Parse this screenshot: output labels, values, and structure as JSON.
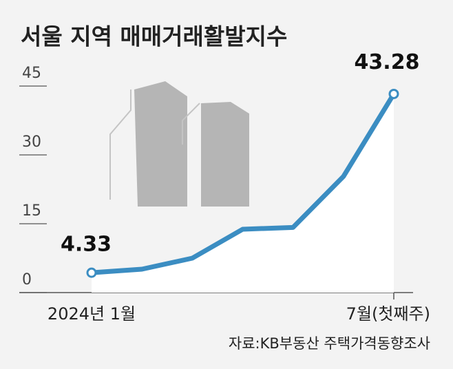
{
  "chart_data": {
    "type": "line",
    "title": "서울 지역 매매거래활발지수",
    "categories": [
      "2024년 1월",
      null,
      null,
      null,
      null,
      null,
      "7월(첫째주)"
    ],
    "values": [
      4.33,
      5.1,
      7.5,
      13.8,
      14.2,
      25.3,
      43.28
    ],
    "value_labels": [
      "4.33",
      null,
      null,
      null,
      null,
      null,
      "43.28"
    ],
    "color": "#3b8dc2",
    "ylim": [
      0,
      45
    ],
    "yticks": [
      0,
      15,
      30,
      45
    ],
    "grid": true,
    "source": "자료:KB부동산 주택가격동향조사"
  }
}
